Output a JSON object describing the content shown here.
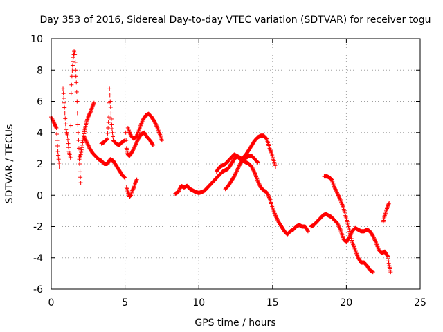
{
  "chart_data": {
    "type": "scatter",
    "title": "Day 353 of 2016, Sidereal Day-to-day VTEC variation (SDTVAR) for receiver togu",
    "xlabel": "GPS time / hours",
    "ylabel": "SDTVAR / TECUs",
    "xlim": [
      0,
      25
    ],
    "ylim": [
      -6,
      10
    ],
    "xticks": [
      0,
      5,
      10,
      15,
      20,
      25
    ],
    "yticks": [
      -6,
      -4,
      -2,
      0,
      2,
      4,
      6,
      8,
      10
    ],
    "grid": true,
    "marker": "+",
    "marker_color": "#ff0000",
    "series": [
      {
        "name": "tracks",
        "segments": [
          [
            [
              0.0,
              5.0
            ],
            [
              0.15,
              4.7
            ],
            [
              0.25,
              4.5
            ],
            [
              0.35,
              4.3
            ],
            [
              0.4,
              3.5
            ],
            [
              0.45,
              2.8
            ],
            [
              0.5,
              2.3
            ],
            [
              0.55,
              1.8
            ]
          ],
          [
            [
              0.8,
              6.8
            ],
            [
              0.9,
              5.6
            ],
            [
              1.0,
              4.2
            ],
            [
              1.1,
              3.8
            ],
            [
              1.2,
              2.8
            ],
            [
              1.3,
              2.4
            ],
            [
              1.35,
              6.5
            ],
            [
              1.4,
              7.6
            ],
            [
              1.45,
              8.3
            ],
            [
              1.5,
              8.8
            ],
            [
              1.55,
              9.2
            ],
            [
              1.6,
              9.0
            ],
            [
              1.65,
              8.0
            ],
            [
              1.7,
              7.2
            ],
            [
              1.75,
              6.0
            ],
            [
              1.8,
              4.5
            ],
            [
              1.85,
              3.5
            ],
            [
              1.9,
              2.5
            ],
            [
              1.95,
              1.5
            ],
            [
              2.0,
              0.8
            ]
          ],
          [
            [
              1.9,
              2.3
            ],
            [
              2.0,
              2.6
            ],
            [
              2.1,
              3.2
            ],
            [
              2.2,
              3.8
            ],
            [
              2.3,
              4.3
            ],
            [
              2.4,
              4.7
            ],
            [
              2.5,
              5.0
            ],
            [
              2.6,
              5.2
            ],
            [
              2.7,
              5.4
            ],
            [
              2.8,
              5.7
            ],
            [
              2.9,
              5.9
            ]
          ],
          [
            [
              2.2,
              3.8
            ],
            [
              2.4,
              3.4
            ],
            [
              2.6,
              3.0
            ],
            [
              2.8,
              2.7
            ],
            [
              3.0,
              2.5
            ],
            [
              3.2,
              2.3
            ],
            [
              3.4,
              2.2
            ],
            [
              3.6,
              2.0
            ],
            [
              3.8,
              2.0
            ],
            [
              4.0,
              2.3
            ],
            [
              4.2,
              2.2
            ],
            [
              4.4,
              1.9
            ],
            [
              4.6,
              1.6
            ],
            [
              4.8,
              1.3
            ],
            [
              5.0,
              1.1
            ]
          ],
          [
            [
              3.4,
              3.3
            ],
            [
              3.6,
              3.4
            ],
            [
              3.8,
              3.6
            ],
            [
              3.9,
              5.0
            ],
            [
              3.95,
              6.8
            ],
            [
              4.0,
              6.0
            ],
            [
              4.1,
              4.5
            ],
            [
              4.2,
              3.5
            ],
            [
              4.4,
              3.3
            ],
            [
              4.6,
              3.2
            ],
            [
              4.8,
              3.4
            ],
            [
              5.0,
              3.5
            ]
          ],
          [
            [
              5.05,
              4.0
            ],
            [
              5.1,
              3.0
            ],
            [
              5.2,
              2.6
            ],
            [
              5.3,
              2.5
            ],
            [
              5.5,
              2.8
            ],
            [
              5.7,
              3.2
            ],
            [
              5.9,
              3.6
            ],
            [
              6.1,
              3.9
            ],
            [
              6.3,
              4.0
            ],
            [
              6.5,
              3.7
            ],
            [
              6.7,
              3.5
            ],
            [
              6.9,
              3.2
            ]
          ],
          [
            [
              5.1,
              0.5
            ],
            [
              5.2,
              0.2
            ],
            [
              5.3,
              -0.1
            ],
            [
              5.4,
              0.0
            ],
            [
              5.5,
              0.3
            ],
            [
              5.6,
              0.5
            ],
            [
              5.7,
              0.8
            ],
            [
              5.8,
              1.0
            ]
          ],
          [
            [
              5.2,
              4.3
            ],
            [
              5.4,
              3.8
            ],
            [
              5.6,
              3.6
            ],
            [
              5.8,
              3.8
            ],
            [
              6.0,
              4.3
            ],
            [
              6.2,
              4.8
            ],
            [
              6.4,
              5.1
            ],
            [
              6.6,
              5.2
            ],
            [
              6.8,
              5.0
            ],
            [
              7.0,
              4.7
            ],
            [
              7.2,
              4.3
            ],
            [
              7.4,
              3.8
            ],
            [
              7.5,
              3.5
            ]
          ],
          [
            [
              8.4,
              0.1
            ],
            [
              8.6,
              0.2
            ],
            [
              8.8,
              0.6
            ],
            [
              9.0,
              0.5
            ],
            [
              9.2,
              0.6
            ],
            [
              9.4,
              0.4
            ],
            [
              9.6,
              0.3
            ],
            [
              9.8,
              0.2
            ],
            [
              10.0,
              0.15
            ],
            [
              10.2,
              0.2
            ],
            [
              10.4,
              0.3
            ],
            [
              10.6,
              0.5
            ],
            [
              10.8,
              0.7
            ],
            [
              11.0,
              0.9
            ],
            [
              11.2,
              1.1
            ],
            [
              11.4,
              1.3
            ],
            [
              11.6,
              1.5
            ],
            [
              11.8,
              1.6
            ],
            [
              12.0,
              1.7
            ],
            [
              12.2,
              2.0
            ],
            [
              12.4,
              2.3
            ],
            [
              12.6,
              2.5
            ],
            [
              12.8,
              2.4
            ],
            [
              13.0,
              2.2
            ],
            [
              13.2,
              2.1
            ],
            [
              13.4,
              2.0
            ],
            [
              13.6,
              1.8
            ],
            [
              13.8,
              1.4
            ],
            [
              14.0,
              0.9
            ],
            [
              14.2,
              0.5
            ],
            [
              14.4,
              0.3
            ],
            [
              14.6,
              0.2
            ],
            [
              14.8,
              -0.2
            ],
            [
              15.0,
              -0.8
            ],
            [
              15.2,
              -1.3
            ],
            [
              15.4,
              -1.7
            ],
            [
              15.6,
              -2.0
            ],
            [
              15.8,
              -2.3
            ],
            [
              16.0,
              -2.5
            ],
            [
              16.2,
              -2.3
            ],
            [
              16.4,
              -2.2
            ],
            [
              16.6,
              -2.0
            ],
            [
              16.8,
              -1.9
            ],
            [
              17.0,
              -2.0
            ],
            [
              17.2,
              -2.0
            ],
            [
              17.4,
              -2.3
            ]
          ],
          [
            [
              11.2,
              1.5
            ],
            [
              11.4,
              1.8
            ],
            [
              11.6,
              1.9
            ],
            [
              11.8,
              2.0
            ],
            [
              12.0,
              2.2
            ],
            [
              12.2,
              2.4
            ],
            [
              12.4,
              2.6
            ],
            [
              12.6,
              2.5
            ],
            [
              12.8,
              2.3
            ],
            [
              13.0,
              2.4
            ],
            [
              13.2,
              2.6
            ],
            [
              13.4,
              2.9
            ],
            [
              13.6,
              3.2
            ],
            [
              13.8,
              3.5
            ],
            [
              14.0,
              3.7
            ],
            [
              14.2,
              3.8
            ],
            [
              14.4,
              3.8
            ],
            [
              14.6,
              3.6
            ],
            [
              14.8,
              3.0
            ],
            [
              15.0,
              2.5
            ],
            [
              15.2,
              1.8
            ]
          ],
          [
            [
              11.8,
              0.4
            ],
            [
              12.0,
              0.6
            ],
            [
              12.2,
              0.9
            ],
            [
              12.4,
              1.2
            ],
            [
              12.6,
              1.6
            ],
            [
              12.8,
              2.0
            ],
            [
              13.0,
              2.3
            ],
            [
              13.2,
              2.4
            ],
            [
              13.4,
              2.5
            ],
            [
              13.6,
              2.5
            ],
            [
              13.8,
              2.3
            ],
            [
              14.0,
              2.1
            ]
          ],
          [
            [
              17.6,
              -2.0
            ],
            [
              17.8,
              -1.9
            ],
            [
              18.0,
              -1.7
            ],
            [
              18.2,
              -1.5
            ],
            [
              18.4,
              -1.3
            ],
            [
              18.6,
              -1.2
            ],
            [
              18.8,
              -1.3
            ],
            [
              19.0,
              -1.4
            ],
            [
              19.2,
              -1.6
            ],
            [
              19.4,
              -1.8
            ],
            [
              19.6,
              -2.2
            ],
            [
              19.8,
              -2.8
            ],
            [
              20.0,
              -3.0
            ],
            [
              20.2,
              -2.7
            ],
            [
              20.4,
              -2.3
            ],
            [
              20.6,
              -2.1
            ],
            [
              20.8,
              -2.2
            ],
            [
              21.0,
              -2.3
            ],
            [
              21.2,
              -2.3
            ],
            [
              21.4,
              -2.2
            ],
            [
              21.6,
              -2.3
            ],
            [
              21.8,
              -2.6
            ],
            [
              22.0,
              -3.0
            ],
            [
              22.2,
              -3.5
            ],
            [
              22.4,
              -3.7
            ],
            [
              22.6,
              -3.6
            ],
            [
              22.8,
              -3.9
            ],
            [
              22.9,
              -4.5
            ],
            [
              23.0,
              -4.9
            ]
          ],
          [
            [
              18.5,
              1.2
            ],
            [
              18.7,
              1.2
            ],
            [
              18.9,
              1.1
            ],
            [
              19.0,
              1.0
            ],
            [
              19.2,
              0.5
            ],
            [
              19.4,
              0.1
            ],
            [
              19.6,
              -0.3
            ],
            [
              19.8,
              -0.8
            ],
            [
              20.0,
              -1.5
            ],
            [
              20.2,
              -2.2
            ],
            [
              20.4,
              -3.0
            ],
            [
              20.6,
              -3.5
            ],
            [
              20.8,
              -4.0
            ],
            [
              21.0,
              -4.3
            ],
            [
              21.2,
              -4.3
            ],
            [
              21.4,
              -4.5
            ],
            [
              21.6,
              -4.8
            ],
            [
              21.8,
              -4.9
            ]
          ],
          [
            [
              22.5,
              -1.7
            ],
            [
              22.6,
              -1.3
            ],
            [
              22.7,
              -1.0
            ],
            [
              22.8,
              -0.7
            ],
            [
              22.9,
              -0.5
            ]
          ]
        ]
      }
    ]
  }
}
